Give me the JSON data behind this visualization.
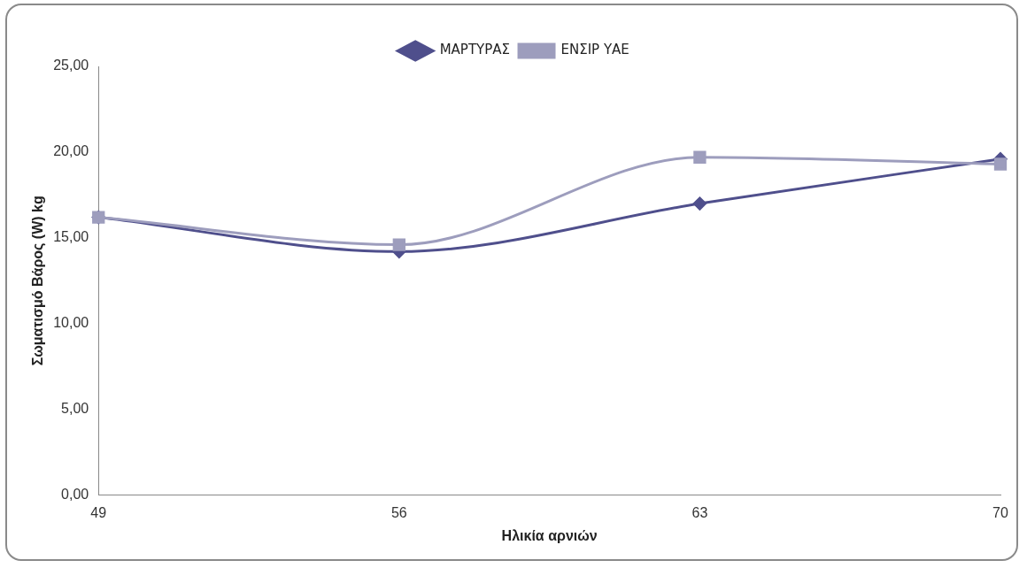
{
  "chart_data": {
    "type": "line",
    "xlabel": "Ηλικία αρνιών",
    "ylabel": "Σωματισμό Βάρος (W) kg",
    "categories": [
      "49",
      "56",
      "63",
      "70"
    ],
    "series": [
      {
        "name": "ΜΑΡΤΥΡΑΣ",
        "color": "#4f4f8c",
        "marker": "diamond",
        "values": [
          16.2,
          14.2,
          17.0,
          19.6
        ]
      },
      {
        "name": "ΕΝΣΙΡ ΥΑΕ",
        "color": "#9d9dbd",
        "marker": "square",
        "values": [
          16.2,
          14.6,
          19.7,
          19.3
        ]
      }
    ],
    "ylim": [
      0,
      25
    ],
    "yticks": [
      {
        "value": 0,
        "label": "0,00"
      },
      {
        "value": 5,
        "label": "5,00"
      },
      {
        "value": 10,
        "label": "10,00"
      },
      {
        "value": 15,
        "label": "15,00"
      },
      {
        "value": 20,
        "label": "20,00"
      },
      {
        "value": 25,
        "label": "25,00"
      }
    ],
    "grid": false,
    "legend": "top",
    "line_style": "solid"
  }
}
